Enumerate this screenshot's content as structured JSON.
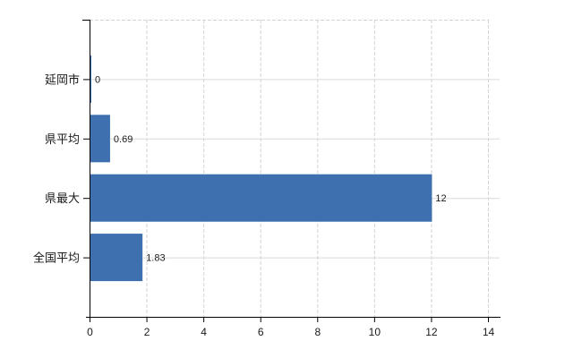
{
  "chart_data": {
    "type": "bar",
    "orientation": "horizontal",
    "title": "",
    "categories": [
      "延岡市",
      "県平均",
      "県最大",
      "全国平均"
    ],
    "values": [
      0,
      0.69,
      12,
      1.83
    ],
    "value_labels": [
      "0",
      "0.69",
      "12",
      "1.83"
    ],
    "x_ticks": [
      0,
      2,
      4,
      6,
      8,
      10,
      12,
      14
    ],
    "x_tick_labels": [
      "0",
      "2",
      "4",
      "6",
      "8",
      "10",
      "12",
      "14"
    ],
    "xlim": [
      0,
      14
    ],
    "xlabel": "",
    "ylabel": "",
    "grid": true,
    "legend": false
  },
  "colors": {
    "bar": "#3e6fae",
    "axis": "#000000",
    "grid_vertical": "#d4d4d4",
    "grid_horizontal": "#d8ded6",
    "text": "#1a1a1a",
    "background": "#ffffff"
  }
}
